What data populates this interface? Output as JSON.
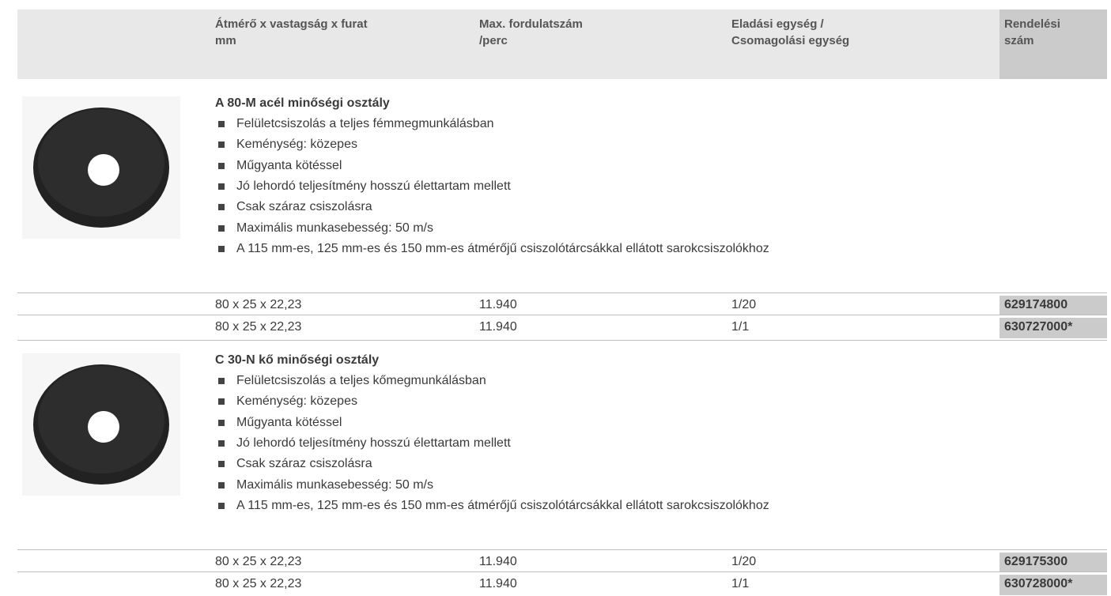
{
  "header": {
    "columns": [
      [
        "Átmérő x vastagság x furat",
        "mm"
      ],
      [
        "Max. fordulatszám",
        "/perc"
      ],
      [
        "Eladási egység /",
        "Csomagolási egység"
      ],
      [
        "Rendelési",
        "szám"
      ]
    ]
  },
  "products": [
    {
      "title": "A 80-M acél minőségi osztály",
      "bullets": [
        "Felületcsiszolás a teljes fémmegmunkálásban",
        "Keménység: közepes",
        "Műgyanta kötéssel",
        "Jó lehordó teljesítmény hosszú élettartam mellett",
        "Csak száraz csiszolásra",
        "Maximális munkasebesség: 50 m/s",
        "A 115 mm-es, 125 mm-es és 150 mm-es átmérőjű csiszolótárcsákkal ellátott sarokcsiszolókhoz"
      ],
      "rows": [
        [
          "80 x 25 x 22,23",
          "11.940",
          "1/20",
          "629174800"
        ],
        [
          "80 x 25 x 22,23",
          "11.940",
          "1/1",
          "630727000*"
        ]
      ]
    },
    {
      "title": "C 30-N kő minőségi osztály",
      "bullets": [
        "Felületcsiszolás a teljes kőmegmunkálásban",
        "Keménység: közepes",
        "Műgyanta kötéssel",
        "Jó lehordó teljesítmény hosszú élettartam mellett",
        "Csak száraz csiszolásra",
        "Maximális munkasebesség: 50 m/s",
        "A 115 mm-es, 125 mm-es és 150 mm-es átmérőjű csiszolótárcsákkal ellátott sarokcsiszolókhoz"
      ],
      "rows": [
        [
          "80 x 25 x 22,23",
          "11.940",
          "1/20",
          "629175300"
        ],
        [
          "80 x 25 x 22,23",
          "11.940",
          "1/1",
          "630728000*"
        ]
      ]
    }
  ]
}
